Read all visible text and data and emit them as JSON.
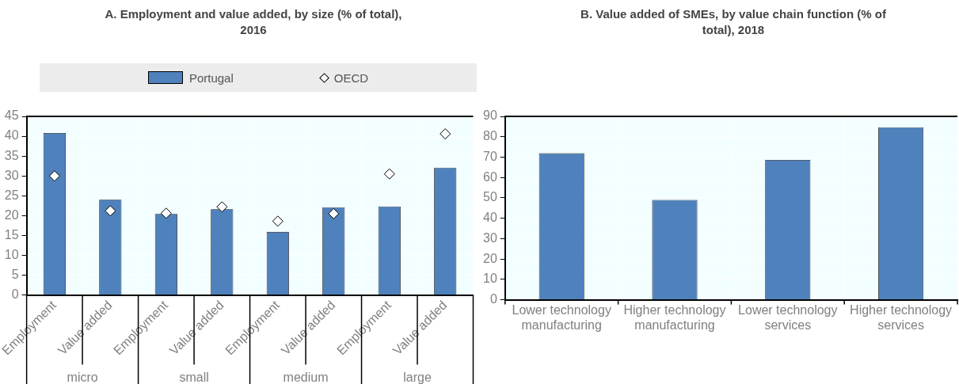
{
  "chart_data": [
    {
      "type": "bar",
      "title": "A. Employment and value added, by size (% of total), 2016",
      "categories": [
        "Employment",
        "Value added",
        "Employment",
        "Value added",
        "Employment",
        "Value added",
        "Employment",
        "Value added"
      ],
      "series": [
        {
          "name": "Portugal",
          "type": "bar",
          "color": "#4f81bd",
          "values": [
            40.8,
            24.0,
            20.4,
            21.6,
            15.9,
            22.1,
            22.3,
            32.1
          ]
        },
        {
          "name": "OECD",
          "type": "scatter",
          "color": "#ffffff",
          "values": [
            30.0,
            21.2,
            20.6,
            22.2,
            18.6,
            20.5,
            30.5,
            40.6
          ]
        }
      ],
      "marker": "diamond",
      "ylim": [
        0,
        45
      ],
      "yticks": [
        0,
        5,
        10,
        15,
        20,
        25,
        30,
        35,
        40,
        45
      ],
      "grid": true,
      "legend": "top",
      "annotations": [
        "micro",
        "small",
        "medium",
        "large"
      ]
    },
    {
      "type": "bar",
      "title": "B. Value added of SMEs, by value chain function (% of total), 2018",
      "categories": [
        "Lower technology manufacturing",
        "Higher technology manufacturing",
        "Lower technology services",
        "Higher technology services"
      ],
      "values": [
        71.9,
        49.0,
        68.6,
        84.7
      ],
      "color": "#4f81bd",
      "ylim": [
        0,
        90
      ],
      "yticks": [
        0,
        10,
        20,
        30,
        40,
        50,
        60,
        70,
        80,
        90
      ],
      "grid": true
    }
  ]
}
